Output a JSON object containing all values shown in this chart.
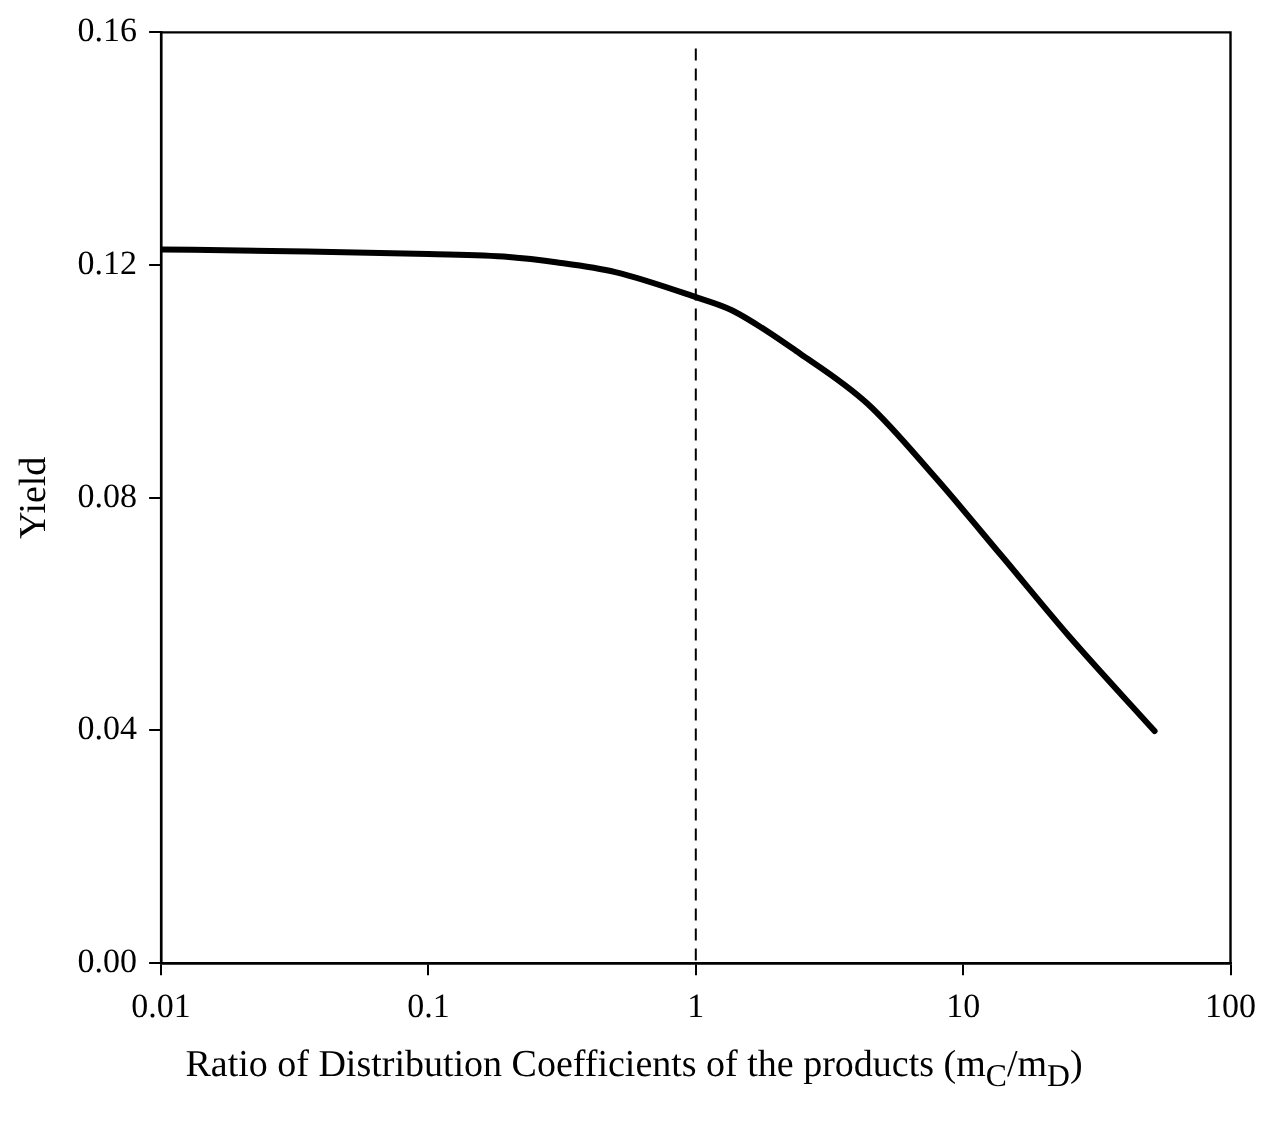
{
  "chart_data": {
    "type": "line",
    "xlabel": "Ratio of Distribution Coefficients of the products (m$_{C}$/m$_{D}$)",
    "ylabel": "Yield",
    "log": "x",
    "grid": false,
    "legend": false,
    "marker": "none",
    "line_style": "solid",
    "x": [
      0.01,
      0.03,
      0.1,
      0.2,
      0.3,
      0.5,
      1,
      1.37,
      2.45,
      4.38,
      7.83,
      14,
      24.9,
      52
    ],
    "series": [
      {
        "color": "#000000",
        "values": [
          0.1227,
          0.1224,
          0.1219,
          0.1214,
          0.1205,
          0.1188,
          0.1145,
          0.1122,
          0.1048,
          0.0962,
          0.0836,
          0.0699,
          0.0562,
          0.0399
        ]
      }
    ],
    "xlim": [
      0.01,
      100
    ],
    "xticks": [
      0.01,
      0.1,
      1,
      10,
      100
    ],
    "ylim": [
      0,
      0.16
    ],
    "yticks": [
      {
        "value": 0,
        "label": "0.00"
      },
      {
        "value": 0.04,
        "label": "0.04"
      },
      {
        "value": 0.08,
        "label": "0.08"
      },
      {
        "value": 0.12,
        "label": "0.12"
      },
      {
        "value": 0.16,
        "label": "0.16"
      }
    ],
    "ref_lines": [
      {
        "axis": "x",
        "value": 1,
        "line_style": "dashed",
        "color": "#000000"
      }
    ]
  }
}
